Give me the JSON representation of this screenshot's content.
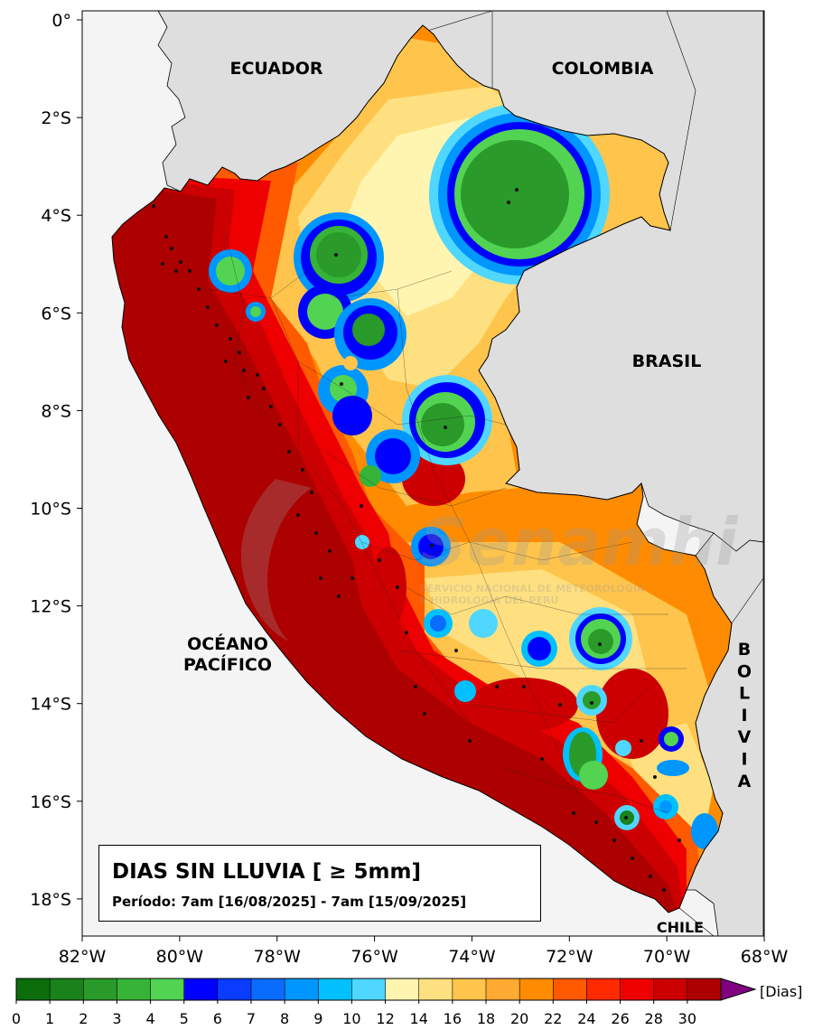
{
  "title": "DIAS SIN LLUVIA [ ≥ 5mm]",
  "period": "Período: 7am [16/08/2025] - 7am [15/09/2025]",
  "countries": {
    "ecuador": "ECUADOR",
    "colombia": "COLOMBIA",
    "brasil": "BRASIL",
    "bolivia": [
      "B",
      "O",
      "L",
      "I",
      "V",
      "I",
      "A"
    ],
    "chile": "CHILE",
    "ocean_line1": "OCÉANO",
    "ocean_line2": "PACÍFICO"
  },
  "watermark": {
    "name": "Senamhi",
    "line1": "SERVICIO NACIONAL DE METEOROLOGÍA",
    "line2": "E HIDROLOGÍA DEL PERÚ"
  },
  "axes": {
    "lat_ticks": [
      "0°",
      "2°S",
      "4°S",
      "6°S",
      "8°S",
      "10°S",
      "12°S",
      "14°S",
      "16°S",
      "18°S"
    ],
    "lon_ticks": [
      "82°W",
      "80°W",
      "78°W",
      "76°W",
      "74°W",
      "72°W",
      "70°W",
      "68°W"
    ]
  },
  "colorbar": {
    "unit": "[Dias]",
    "ticks": [
      "0",
      "1",
      "2",
      "3",
      "4",
      "5",
      "6",
      "7",
      "8",
      "9",
      "10",
      "12",
      "14",
      "16",
      "18",
      "20",
      "22",
      "24",
      "26",
      "28",
      "30"
    ],
    "colors": [
      "#0b6e0b",
      "#1a821a",
      "#2a9a2a",
      "#37b437",
      "#52d452",
      "#0000ff",
      "#0a3cff",
      "#0a6cff",
      "#0096ff",
      "#00c0ff",
      "#4fd7ff",
      "#fff5b0",
      "#ffe080",
      "#ffc44c",
      "#ffaa33",
      "#ff8c00",
      "#ff5a00",
      "#ff2a00",
      "#ee0000",
      "#cc0000",
      "#ad0000"
    ],
    "extend_color": "#800080"
  }
}
